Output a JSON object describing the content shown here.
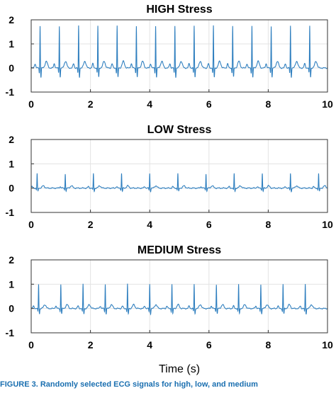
{
  "chart_data": [
    {
      "type": "line",
      "title": "HIGH Stress",
      "xlim": [
        0,
        10
      ],
      "ylim": [
        -1,
        2
      ],
      "xticks": [
        0,
        2,
        4,
        6,
        8,
        10
      ],
      "xtick_labels": [
        "0",
        "2",
        "4",
        "6",
        "8",
        "10"
      ],
      "yticks": [
        -1,
        0,
        1,
        2
      ],
      "ytick_labels": [
        "-1",
        "0",
        "1",
        "2"
      ],
      "grid": true,
      "line_color": "#2f7fbf",
      "beats_s": [
        0.3,
        0.95,
        1.6,
        2.25,
        2.9,
        3.55,
        4.2,
        4.85,
        5.5,
        6.15,
        6.8,
        7.45,
        8.1,
        8.75,
        9.4
      ],
      "r_peak": 1.75,
      "baseline": 0.0
    },
    {
      "type": "line",
      "title": "LOW Stress",
      "xlim": [
        0,
        10
      ],
      "ylim": [
        -1,
        2
      ],
      "xticks": [
        0,
        2,
        4,
        6,
        8,
        10
      ],
      "xtick_labels": [
        "0",
        "2",
        "4",
        "6",
        "8",
        "10"
      ],
      "yticks": [
        -1,
        0,
        1,
        2
      ],
      "ytick_labels": [
        "-1",
        "0",
        "1",
        "2"
      ],
      "grid": true,
      "line_color": "#2f7fbf",
      "beats_s": [
        0.2,
        1.15,
        2.1,
        3.05,
        4.0,
        4.95,
        5.9,
        6.85,
        7.8,
        8.75,
        9.7
      ],
      "r_peak": 0.6,
      "baseline": 0.0
    },
    {
      "type": "line",
      "title": "MEDIUM Stress",
      "xticks": [
        0,
        2,
        4,
        6,
        8,
        10
      ],
      "xtick_labels": [
        "0",
        "2",
        "4",
        "6",
        "8",
        "10"
      ],
      "yticks": [
        -1,
        0,
        1,
        2
      ],
      "ytick_labels": [
        "-1",
        "0",
        "1",
        "2"
      ],
      "xlim": [
        0,
        10
      ],
      "ylim": [
        -1,
        2
      ],
      "grid": true,
      "line_color": "#2f7fbf",
      "beats_s": [
        0.25,
        1.0,
        1.75,
        2.5,
        3.25,
        4.0,
        4.75,
        5.5,
        6.25,
        7.0,
        7.75,
        8.5,
        9.25
      ],
      "r_peak": 1.0,
      "baseline": 0.0
    }
  ],
  "xlabel": "Time (s)",
  "caption": "FIGURE 3.  Randomly selected ECG signals for high, low, and medium"
}
